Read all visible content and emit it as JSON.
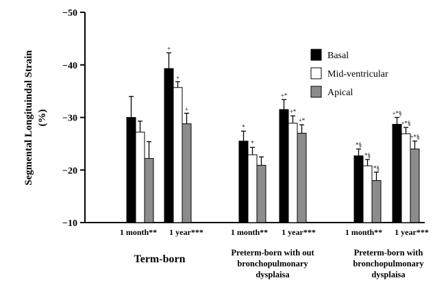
{
  "chart_data": {
    "type": "bar",
    "ylabel_lines": [
      "Segmental Longituindal Strain",
      "(%)"
    ],
    "ylim": [
      -10,
      -50
    ],
    "y_ticks": [
      "-10",
      "-20",
      "-30",
      "-40",
      "-50"
    ],
    "y_tick_values": [
      -10,
      -20,
      -30,
      -40,
      -50
    ],
    "categories": [
      "1 month**",
      "1 year***",
      "1 month**",
      "1 year***",
      "1 month**",
      "1 year***"
    ],
    "groups": [
      {
        "lines": [
          "Term-born"
        ]
      },
      {
        "lines": [
          "Preterm-born with out",
          "bronchopulmonary",
          "dysplaisa"
        ]
      },
      {
        "lines": [
          "Preterm-born with",
          "bronchopulmonary",
          "dysplaisa"
        ]
      }
    ],
    "legend": {
      "placement": "top-right"
    },
    "series": [
      {
        "name": "Basal",
        "color": "#000000",
        "values": [
          -30.0,
          -39.3,
          -25.5,
          -31.5,
          -22.7,
          -28.7
        ],
        "errors": [
          4.0,
          3.0,
          1.9,
          1.9,
          1.3,
          1.3
        ],
        "annotations": [
          "",
          "+",
          "*",
          "+*",
          "*§",
          "+*§"
        ]
      },
      {
        "name": "Mid-ventricular",
        "color": "#ffffff",
        "values": [
          -27.2,
          -35.7,
          -22.9,
          -28.9,
          -20.8,
          -26.9
        ],
        "errors": [
          2.1,
          1.1,
          1.4,
          1.4,
          1.2,
          1.2
        ],
        "annotations": [
          "",
          "+",
          "*",
          "+*",
          "*§",
          "+*§"
        ]
      },
      {
        "name": "Apical",
        "color": "#8c8c8c",
        "values": [
          -22.2,
          -28.8,
          -20.9,
          -27.0,
          -18.0,
          -24.0
        ],
        "errors": [
          3.2,
          2.0,
          1.6,
          1.6,
          1.6,
          1.5
        ],
        "annotations": [
          "",
          "+",
          "",
          "+*",
          "*§",
          "+*§"
        ]
      }
    ]
  }
}
